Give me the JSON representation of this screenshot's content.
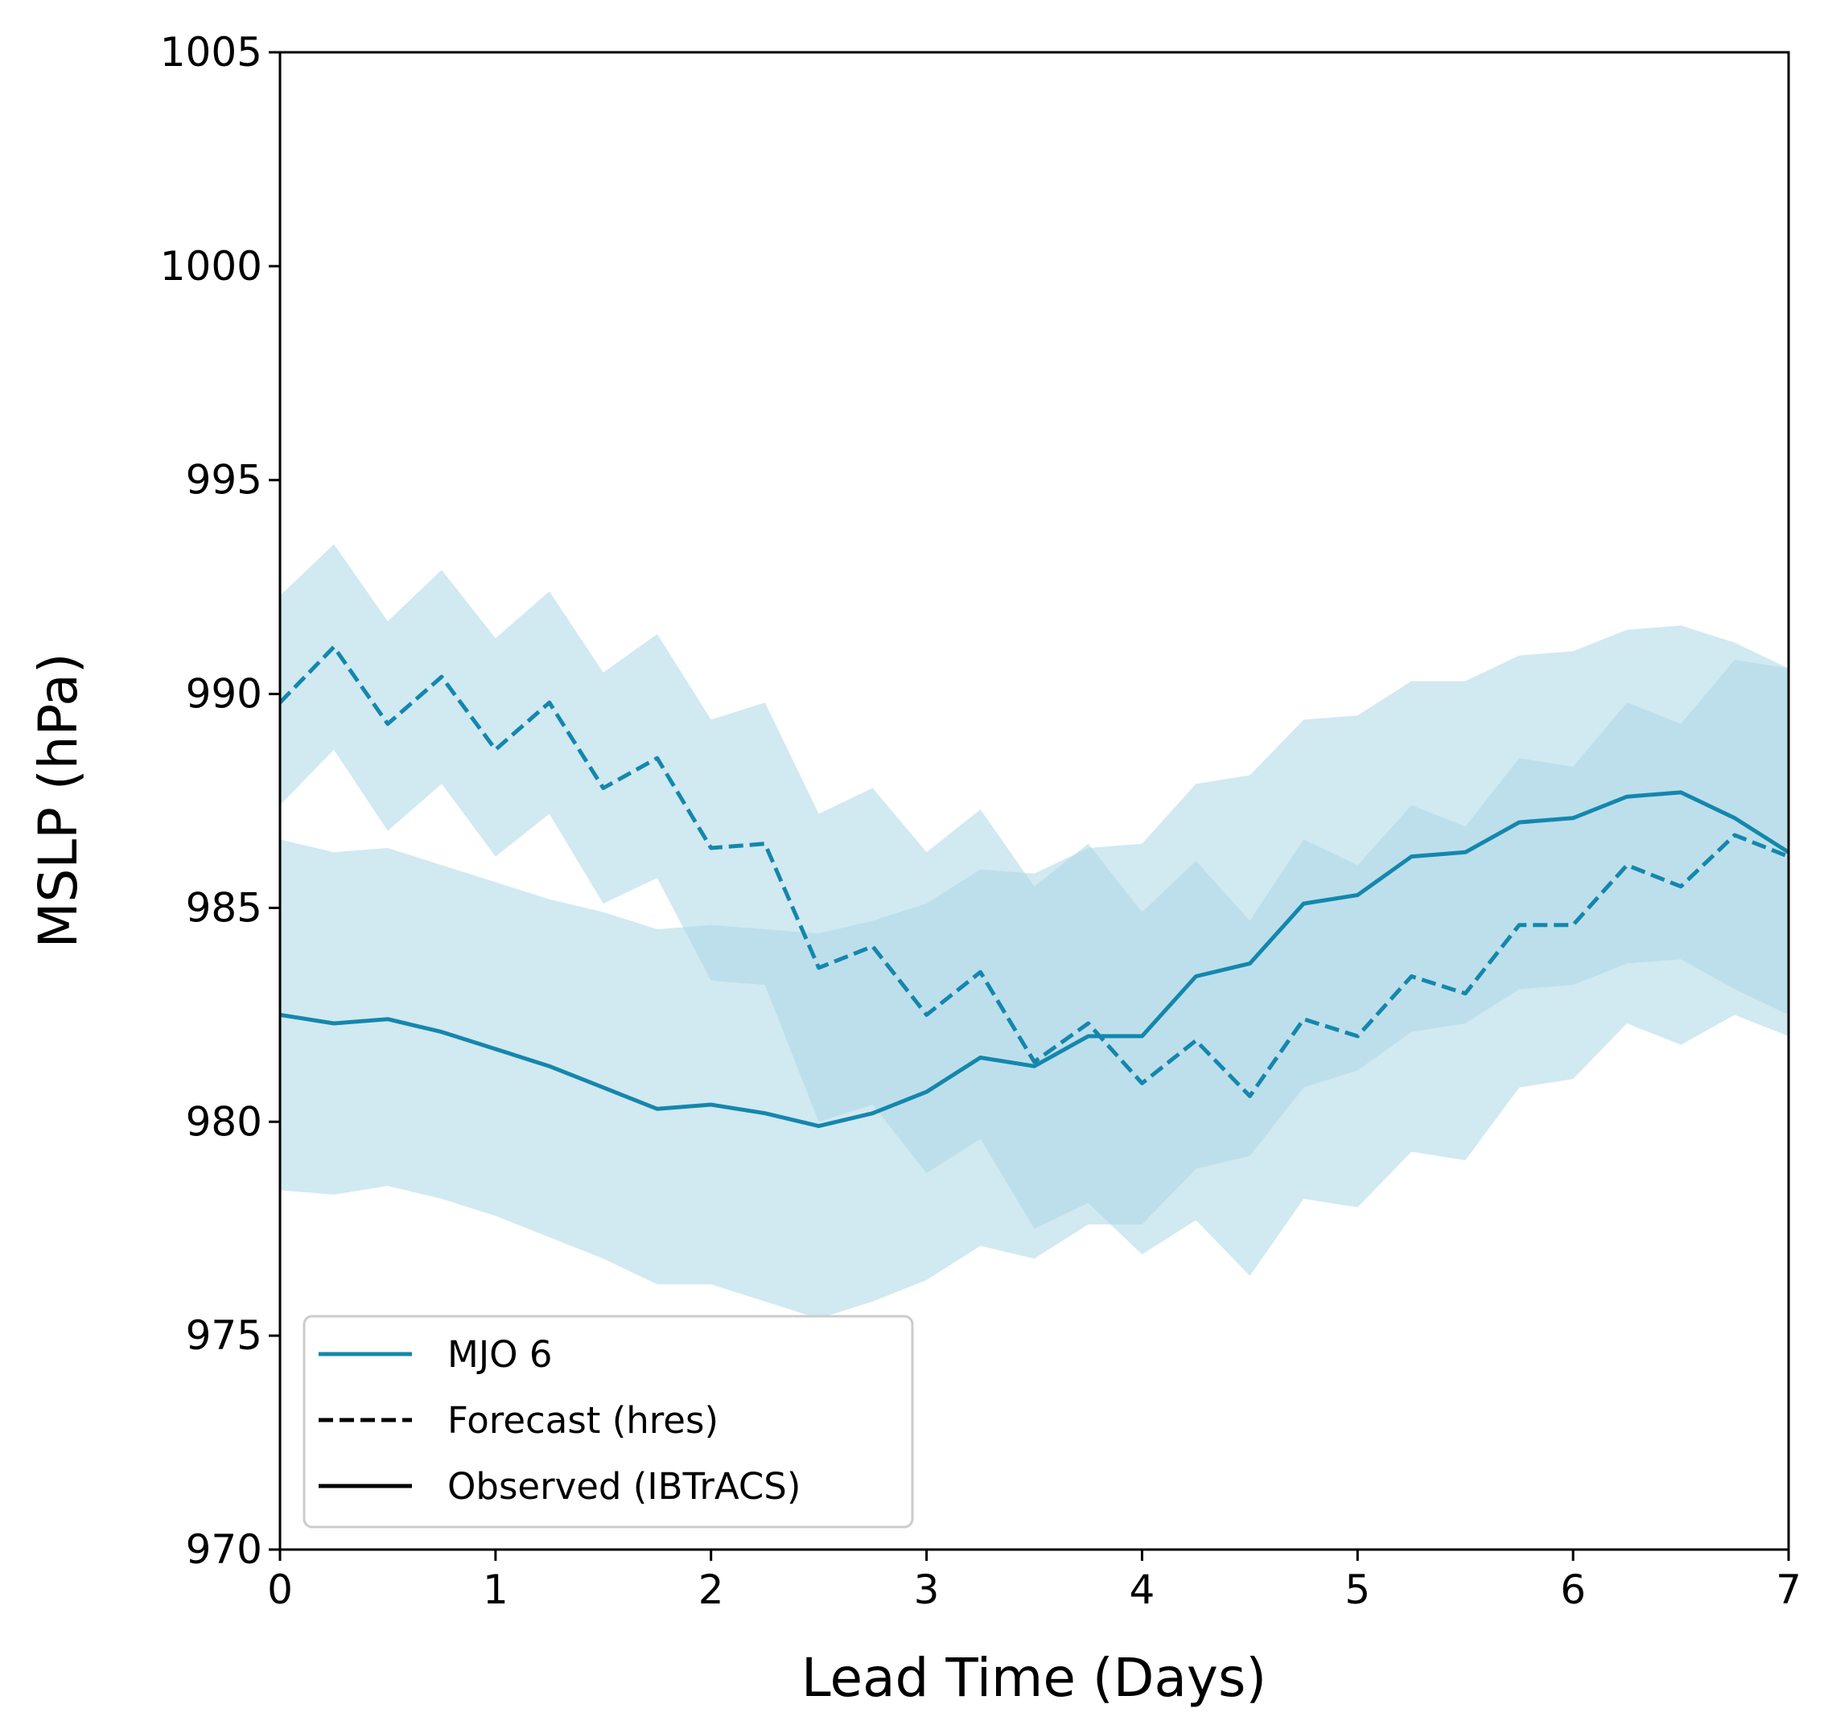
{
  "chart_data": {
    "type": "line",
    "title": "",
    "xlabel": "Lead Time (Days)",
    "ylabel": "MSLP (hPa)",
    "xlim": [
      0,
      7
    ],
    "ylim": [
      970,
      1005
    ],
    "xticks": [
      "0",
      "1",
      "2",
      "3",
      "4",
      "5",
      "6",
      "7"
    ],
    "yticks": [
      "970",
      "975",
      "980",
      "985",
      "990",
      "995",
      "1000",
      "1005"
    ],
    "grid": false,
    "legend_position": "lower-left",
    "colors": {
      "series": "#1487ad",
      "band": "#add8e6",
      "legend_proxy": "#000000"
    },
    "x": [
      0,
      0.25,
      0.5,
      0.75,
      1,
      1.25,
      1.5,
      1.75,
      2,
      2.25,
      2.5,
      2.75,
      3,
      3.25,
      3.5,
      3.75,
      4,
      4.25,
      4.5,
      4.75,
      5,
      5.25,
      5.5,
      5.75,
      6,
      6.25,
      6.5,
      6.75,
      7
    ],
    "series": [
      {
        "name": "Forecast (hres)",
        "style": "dashed",
        "values": [
          989.8,
          991.1,
          989.3,
          990.4,
          988.7,
          989.8,
          987.8,
          988.5,
          986.4,
          986.5,
          983.6,
          984.1,
          982.5,
          983.5,
          981.4,
          982.3,
          980.9,
          981.9,
          980.6,
          982.4,
          982.0,
          983.4,
          983.0,
          984.6,
          984.6,
          986.0,
          985.5,
          986.7,
          986.2
        ],
        "band_upper": [
          992.3,
          993.5,
          991.7,
          992.9,
          991.3,
          992.4,
          990.5,
          991.4,
          989.4,
          989.8,
          987.2,
          987.8,
          986.3,
          987.3,
          985.5,
          986.5,
          984.9,
          986.1,
          984.7,
          986.6,
          986.0,
          987.4,
          986.9,
          988.5,
          988.3,
          989.8,
          989.3,
          990.8,
          990.6
        ],
        "band_lower": [
          987.4,
          988.7,
          986.8,
          987.9,
          986.2,
          987.2,
          985.1,
          985.7,
          983.3,
          983.2,
          980.0,
          980.4,
          978.8,
          979.6,
          977.5,
          978.1,
          976.9,
          977.7,
          976.4,
          978.2,
          978.0,
          979.3,
          979.1,
          980.8,
          981.0,
          982.3,
          981.8,
          982.5,
          982.0
        ]
      },
      {
        "name": "Observed (IBTrACS)",
        "style": "solid",
        "values": [
          982.5,
          982.3,
          982.4,
          982.1,
          981.7,
          981.3,
          980.8,
          980.3,
          980.4,
          980.2,
          979.9,
          980.2,
          980.7,
          981.5,
          981.3,
          982.0,
          982.0,
          983.4,
          983.7,
          985.1,
          985.3,
          986.2,
          986.3,
          987.0,
          987.1,
          987.6,
          987.7,
          987.1,
          986.3
        ],
        "band_upper": [
          986.6,
          986.3,
          986.4,
          986.0,
          985.6,
          985.2,
          984.9,
          984.5,
          984.6,
          984.5,
          984.4,
          984.7,
          985.1,
          985.9,
          985.8,
          986.4,
          986.5,
          987.9,
          988.1,
          989.4,
          989.5,
          990.3,
          990.3,
          990.9,
          991.0,
          991.5,
          991.6,
          991.2,
          990.6
        ],
        "band_lower": [
          978.4,
          978.3,
          978.5,
          978.2,
          977.8,
          977.3,
          976.8,
          976.2,
          976.2,
          975.8,
          975.4,
          975.8,
          976.3,
          977.1,
          976.8,
          977.6,
          977.6,
          978.9,
          979.2,
          980.8,
          981.2,
          982.1,
          982.3,
          983.1,
          983.2,
          983.7,
          983.8,
          983.1,
          982.5
        ]
      }
    ],
    "legend": [
      {
        "label": "MJO 6",
        "style": "solid",
        "color_key": "series"
      },
      {
        "label": "Forecast (hres)",
        "style": "dashed",
        "color_key": "legend_proxy"
      },
      {
        "label": "Observed (IBTrACS)",
        "style": "solid",
        "color_key": "legend_proxy"
      }
    ]
  }
}
